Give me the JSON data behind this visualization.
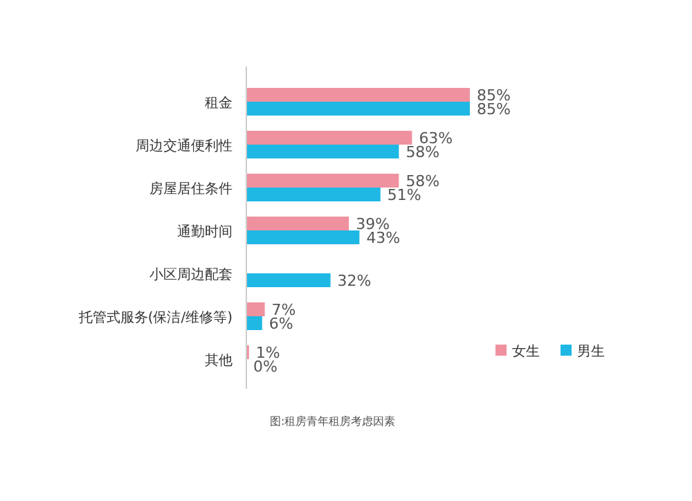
{
  "chart_data": {
    "type": "bar",
    "orientation": "horizontal",
    "categories": [
      "租金",
      "周边交通便利性",
      "房屋居住条件",
      "通勤时间",
      "小区周边配套",
      "托管式服务(保洁/维修等)",
      "其他"
    ],
    "series": [
      {
        "name": "女生",
        "color": "#f0919f",
        "values": [
          85,
          63,
          58,
          39,
          null,
          7,
          1
        ],
        "value_labels": [
          "85%",
          "63%",
          "58%",
          "39%",
          null,
          "7%",
          "1%"
        ]
      },
      {
        "name": "男生",
        "color": "#1fb8e4",
        "values": [
          85,
          58,
          51,
          43,
          32,
          6,
          0
        ],
        "value_labels": [
          "85%",
          "58%",
          "51%",
          "43%",
          "32%",
          "6%",
          "0%"
        ]
      }
    ],
    "xlim": [
      0,
      100
    ],
    "tick_labels": "y",
    "legend": "bottom right",
    "annotations": [
      "图:租房青年租房考虑因素"
    ]
  }
}
